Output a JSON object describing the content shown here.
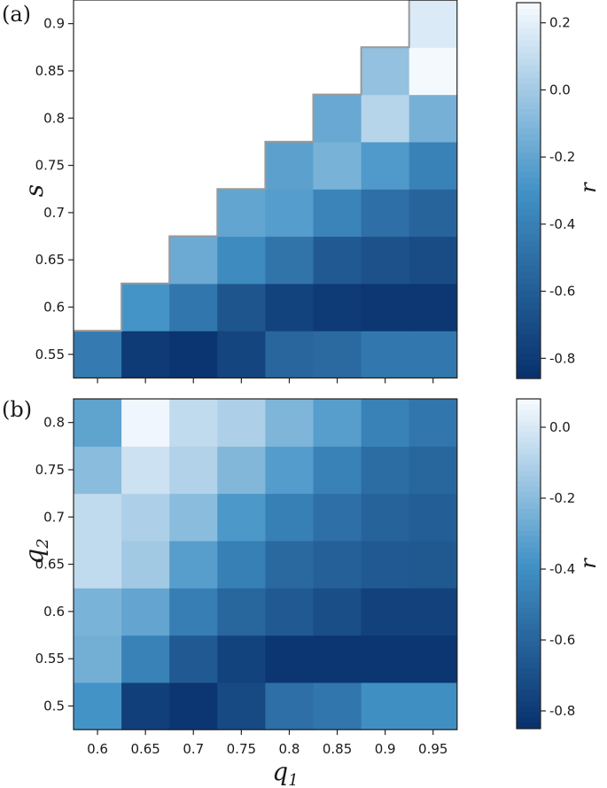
{
  "panel_labels": [
    "(a)",
    "(b)"
  ],
  "colorbar_label": "r",
  "colormap": {
    "name": "Blues_r",
    "dark": "#08306b",
    "mid": "#4292c6",
    "light": "#f7fbff"
  },
  "chart_data": [
    {
      "type": "heatmap",
      "panel": "(a)",
      "xlabel": "",
      "ylabel": "s",
      "x_ticks": [
        "0.6",
        "0.65",
        "0.7",
        "0.75",
        "0.8",
        "0.85",
        "0.9",
        "0.95"
      ],
      "y_ticks": [
        "0.55",
        "0.6",
        "0.65",
        "0.7",
        "0.75",
        "0.8",
        "0.85",
        "0.9"
      ],
      "x": [
        0.6,
        0.65,
        0.7,
        0.75,
        0.8,
        0.85,
        0.9,
        0.95
      ],
      "y": [
        0.55,
        0.6,
        0.65,
        0.7,
        0.75,
        0.8,
        0.85,
        0.9
      ],
      "values": [
        [
          -0.43,
          -0.8,
          -0.83,
          -0.74,
          -0.55,
          -0.53,
          -0.45,
          -0.45
        ],
        [
          null,
          -0.29,
          -0.46,
          -0.65,
          -0.75,
          -0.8,
          -0.82,
          -0.82
        ],
        [
          null,
          null,
          -0.17,
          -0.34,
          -0.47,
          -0.62,
          -0.67,
          -0.7
        ],
        [
          null,
          null,
          null,
          -0.2,
          -0.24,
          -0.38,
          -0.5,
          -0.56
        ],
        [
          null,
          null,
          null,
          null,
          -0.22,
          -0.13,
          -0.26,
          -0.39
        ],
        [
          null,
          null,
          null,
          null,
          null,
          -0.18,
          0.06,
          -0.14
        ],
        [
          null,
          null,
          null,
          null,
          null,
          null,
          -0.05,
          0.25
        ],
        [
          null,
          null,
          null,
          null,
          null,
          null,
          null,
          0.17
        ]
      ],
      "colorbar": {
        "ticks": [
          "0.2",
          "0.0",
          "-0.2",
          "-0.4",
          "-0.6",
          "-0.8"
        ],
        "range": [
          -0.86,
          0.26
        ]
      }
    },
    {
      "type": "heatmap",
      "panel": "(b)",
      "xlabel": "q1",
      "ylabel": "q2",
      "x_ticks": [
        "0.6",
        "0.65",
        "0.7",
        "0.75",
        "0.8",
        "0.85",
        "0.9",
        "0.95"
      ],
      "y_ticks": [
        "0.5",
        "0.55",
        "0.6",
        "0.65",
        "0.7",
        "0.75",
        "0.8"
      ],
      "x": [
        0.6,
        0.65,
        0.7,
        0.75,
        0.8,
        0.85,
        0.9,
        0.95
      ],
      "y": [
        0.5,
        0.55,
        0.6,
        0.65,
        0.7,
        0.75,
        0.8
      ],
      "values": [
        [
          -0.38,
          -0.78,
          -0.82,
          -0.73,
          -0.55,
          -0.52,
          -0.4,
          -0.4
        ],
        [
          -0.26,
          -0.46,
          -0.65,
          -0.76,
          -0.82,
          -0.82,
          -0.82,
          -0.82
        ],
        [
          -0.24,
          -0.3,
          -0.48,
          -0.59,
          -0.65,
          -0.71,
          -0.77,
          -0.77
        ],
        [
          -0.06,
          -0.14,
          -0.33,
          -0.47,
          -0.58,
          -0.62,
          -0.65,
          -0.66
        ],
        [
          -0.06,
          -0.11,
          -0.2,
          -0.36,
          -0.47,
          -0.55,
          -0.61,
          -0.63
        ],
        [
          -0.2,
          -0.03,
          -0.1,
          -0.22,
          -0.34,
          -0.46,
          -0.56,
          -0.59
        ],
        [
          -0.31,
          0.06,
          -0.06,
          -0.11,
          -0.23,
          -0.33,
          -0.46,
          -0.52
        ]
      ],
      "colorbar": {
        "ticks": [
          "0.0",
          "-0.2",
          "-0.4",
          "-0.6",
          "-0.8"
        ],
        "range": [
          -0.85,
          0.08
        ]
      }
    }
  ]
}
